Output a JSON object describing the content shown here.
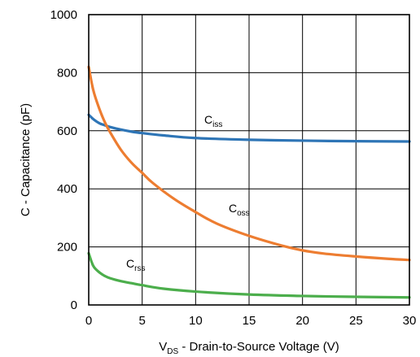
{
  "chart_data": {
    "type": "line",
    "title": "",
    "xlabel": {
      "main": "V",
      "sub": "DS",
      "rest": " - Drain-to-Source Voltage (V)"
    },
    "ylabel": "C - Capacitance (pF)",
    "xlim": [
      0,
      30
    ],
    "ylim": [
      0,
      1000
    ],
    "xticks": [
      "0",
      "5",
      "10",
      "15",
      "20",
      "25",
      "30"
    ],
    "yticks": [
      "0",
      "200",
      "400",
      "600",
      "800",
      "1000"
    ],
    "grid": true,
    "legend": "inline labels",
    "series": [
      {
        "name": "Ciss",
        "label": {
          "main": "C",
          "sub": "iss"
        },
        "color": "#2e75b6",
        "x": [
          0,
          0.5,
          1,
          1.5,
          2,
          3,
          4,
          5,
          7,
          10,
          15,
          20,
          25,
          30
        ],
        "y": [
          655,
          638,
          626,
          619,
          613,
          604,
          597,
          592,
          584,
          575,
          569,
          566,
          564,
          563
        ]
      },
      {
        "name": "Coss",
        "label": {
          "main": "C",
          "sub": "oss"
        },
        "color": "#ed7d31",
        "x": [
          0,
          0.25,
          0.5,
          1,
          1.5,
          2,
          3,
          4,
          5,
          6,
          8,
          10,
          12,
          15,
          18,
          20,
          22,
          25,
          28,
          30
        ],
        "y": [
          820,
          770,
          730,
          675,
          630,
          595,
          535,
          490,
          455,
          420,
          365,
          320,
          280,
          238,
          205,
          188,
          177,
          167,
          159,
          155
        ]
      },
      {
        "name": "Crss",
        "label": {
          "main": "C",
          "sub": "rss"
        },
        "color": "#4cae4c",
        "x": [
          0,
          0.25,
          0.5,
          1,
          1.5,
          2,
          3,
          4,
          5,
          7,
          10,
          15,
          20,
          25,
          30
        ],
        "y": [
          178,
          150,
          130,
          112,
          100,
          92,
          82,
          75,
          68,
          56,
          46,
          36,
          31,
          28,
          26
        ]
      }
    ]
  }
}
